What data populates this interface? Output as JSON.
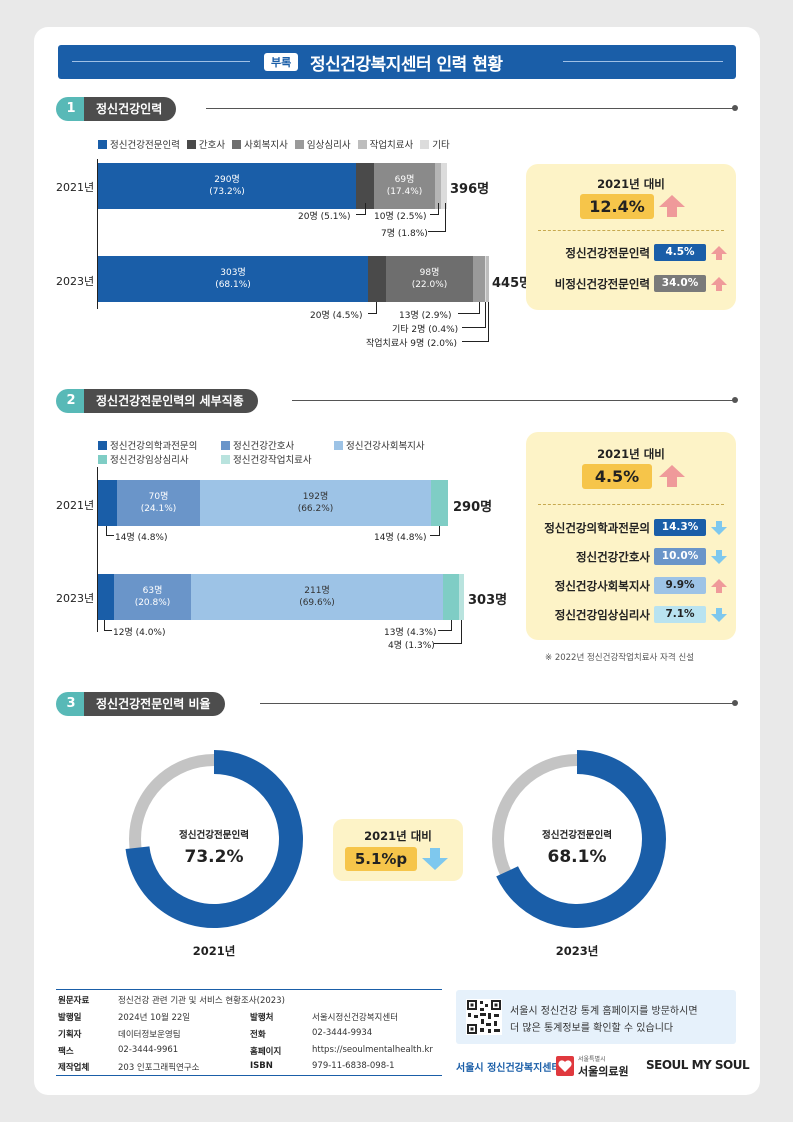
{
  "header": {
    "tag": "부록",
    "title": "정신건강복지센터 인력 현황"
  },
  "colors": {
    "navy": "#1a5ea8",
    "teal": "#58b9b7",
    "dark": "#4d4d4d",
    "panel": "#fdf3c7",
    "highlight": "#f6c54a",
    "up": "#ef9a9a",
    "down": "#7ec8ee"
  },
  "section1": {
    "num": "1",
    "title": "정신건강인력",
    "legend": [
      {
        "label": "정신건강전문인력",
        "color": "#1a5ea8"
      },
      {
        "label": "간호사",
        "color": "#4a4a4a"
      },
      {
        "label": "사회복지사",
        "color": "#6e6e6e"
      },
      {
        "label": "임상심리사",
        "color": "#9a9a9a"
      },
      {
        "label": "작업치료사",
        "color": "#bdbdbd"
      },
      {
        "label": "기타",
        "color": "#dcdcdc"
      }
    ],
    "rows": [
      {
        "year": "2021년",
        "total": "396명",
        "main_label": "290명",
        "main_pct": "(73.2%)",
        "psych_label": "69명",
        "psych_pct": "(17.4%)",
        "notes": [
          "20명 (5.1%)",
          "10명 (2.5%)",
          "7명 (1.8%)"
        ]
      },
      {
        "year": "2023년",
        "total": "445명",
        "main_label": "303명",
        "main_pct": "(68.1%)",
        "psych_label": "98명",
        "psych_pct": "(22.0%)",
        "notes": [
          "20명 (4.5%)",
          "13명 (2.9%)",
          "기타 2명 (0.4%)",
          "작업치료사 9명 (2.0%)"
        ]
      }
    ],
    "panel": {
      "caption": "2021년 대비",
      "change": "12.4%",
      "items": [
        {
          "label": "정신건강전문인력",
          "value": "4.5%",
          "color": "#1a5ea8",
          "dir": "up"
        },
        {
          "label": "비정신건강전문인력",
          "value": "34.0%",
          "color": "#7a7a7a",
          "dir": "up"
        }
      ]
    }
  },
  "section2": {
    "num": "2",
    "title": "정신건강전문인력의 세부직종",
    "legend": [
      {
        "label": "정신건강의학과전문의",
        "color": "#1a5ea8"
      },
      {
        "label": "정신건강간호사",
        "color": "#6a95c9"
      },
      {
        "label": "정신건강사회복지사",
        "color": "#9dc3e6"
      },
      {
        "label": "정신건강임상심리사",
        "color": "#7fcdc5"
      },
      {
        "label": "정신건강작업치료사",
        "color": "#b9e3de"
      }
    ],
    "rows": [
      {
        "year": "2021년",
        "total": "290명",
        "nurse_label": "70명",
        "nurse_pct": "(24.1%)",
        "sw_label": "192명",
        "sw_pct": "(66.2%)",
        "notes": [
          "14명 (4.8%)",
          "14명 (4.8%)"
        ]
      },
      {
        "year": "2023년",
        "total": "303명",
        "nurse_label": "63명",
        "nurse_pct": "(20.8%)",
        "sw_label": "211명",
        "sw_pct": "(69.6%)",
        "notes": [
          "12명 (4.0%)",
          "13명 (4.3%)",
          "4명 (1.3%)"
        ]
      }
    ],
    "panel": {
      "caption": "2021년 대비",
      "change": "4.5%",
      "items": [
        {
          "label": "정신건강의학과전문의",
          "value": "14.3%",
          "color": "#1a5ea8",
          "dir": "down"
        },
        {
          "label": "정신건강간호사",
          "value": "10.0%",
          "color": "#6a95c9",
          "dir": "down"
        },
        {
          "label": "정신건강사회복지사",
          "value": "9.9%",
          "color": "#9dc3e6",
          "dir": "up"
        },
        {
          "label": "정신건강임상심리사",
          "value": "7.1%",
          "color": "#b9e3f0",
          "dir": "down"
        }
      ]
    },
    "footnote": "※ 2022년 정신건강작업치료사 자격 신설"
  },
  "section3": {
    "num": "3",
    "title": "정신건강전문인력 비율",
    "donuts": [
      {
        "year": "2021년",
        "label": "정신건강전문인력",
        "value": "73.2%",
        "fraction": 0.732
      },
      {
        "year": "2023년",
        "label": "정신건강전문인력",
        "value": "68.1%",
        "fraction": 0.681
      }
    ],
    "compare": {
      "caption": "2021년 대비",
      "value": "5.1%p"
    }
  },
  "chart_data": [
    {
      "type": "bar",
      "orientation": "horizontal-stacked",
      "title": "정신건강인력",
      "categories": [
        "2021년",
        "2023년"
      ],
      "series": [
        {
          "name": "정신건강전문인력",
          "values": [
            290,
            303
          ]
        },
        {
          "name": "간호사",
          "values": [
            20,
            20
          ]
        },
        {
          "name": "사회복지사",
          "values": [
            69,
            98
          ]
        },
        {
          "name": "임상심리사",
          "values": [
            10,
            13
          ]
        },
        {
          "name": "작업치료사",
          "values": [
            null,
            9
          ]
        },
        {
          "name": "기타",
          "values": [
            7,
            2
          ]
        }
      ],
      "totals": [
        396,
        445
      ]
    },
    {
      "type": "bar",
      "orientation": "horizontal-stacked",
      "title": "정신건강전문인력의 세부직종",
      "categories": [
        "2021년",
        "2023년"
      ],
      "series": [
        {
          "name": "정신건강의학과전문의",
          "values": [
            14,
            12
          ]
        },
        {
          "name": "정신건강간호사",
          "values": [
            70,
            63
          ]
        },
        {
          "name": "정신건강사회복지사",
          "values": [
            192,
            211
          ]
        },
        {
          "name": "정신건강임상심리사",
          "values": [
            14,
            13
          ]
        },
        {
          "name": "정신건강작업치료사",
          "values": [
            null,
            4
          ]
        }
      ],
      "totals": [
        290,
        303
      ]
    },
    {
      "type": "pie",
      "title": "정신건강전문인력 비율",
      "categories": [
        "2021년",
        "2023년"
      ],
      "series": [
        {
          "name": "정신건강전문인력",
          "values": [
            73.2,
            68.1
          ]
        }
      ]
    }
  ],
  "footer": {
    "rows": [
      [
        {
          "k": "원문자료",
          "v": "정신건강 관련 기관 및 서비스 현황조사(2023)"
        }
      ],
      [
        {
          "k": "발행일",
          "v": "2024년 10월 22일"
        },
        {
          "k": "발행처",
          "v": "서울시정신건강복지센터"
        }
      ],
      [
        {
          "k": "기획자",
          "v": "데이터정보운영팀"
        },
        {
          "k": "전화",
          "v": "02-3444-9934"
        }
      ],
      [
        {
          "k": "팩스",
          "v": "02-3444-9961"
        },
        {
          "k": "홈페이지",
          "v": "https://seoulmentalhealth.kr"
        }
      ],
      [
        {
          "k": "제작업체",
          "v": "203 인포그래픽연구소"
        },
        {
          "k": "ISBN",
          "v": "979-11-6838-098-1"
        }
      ]
    ],
    "visit_text_1": "서울시 정신건강 통계 홈페이지를 방문하시면",
    "visit_text_2": "더 많은 통계정보를 확인할 수 있습니다",
    "logos": {
      "center": "서울시 정신건강복지센터",
      "hospital_small": "서울특별시",
      "hospital": "서울의료원",
      "seoul": "SEOUL MY SOUL"
    }
  }
}
